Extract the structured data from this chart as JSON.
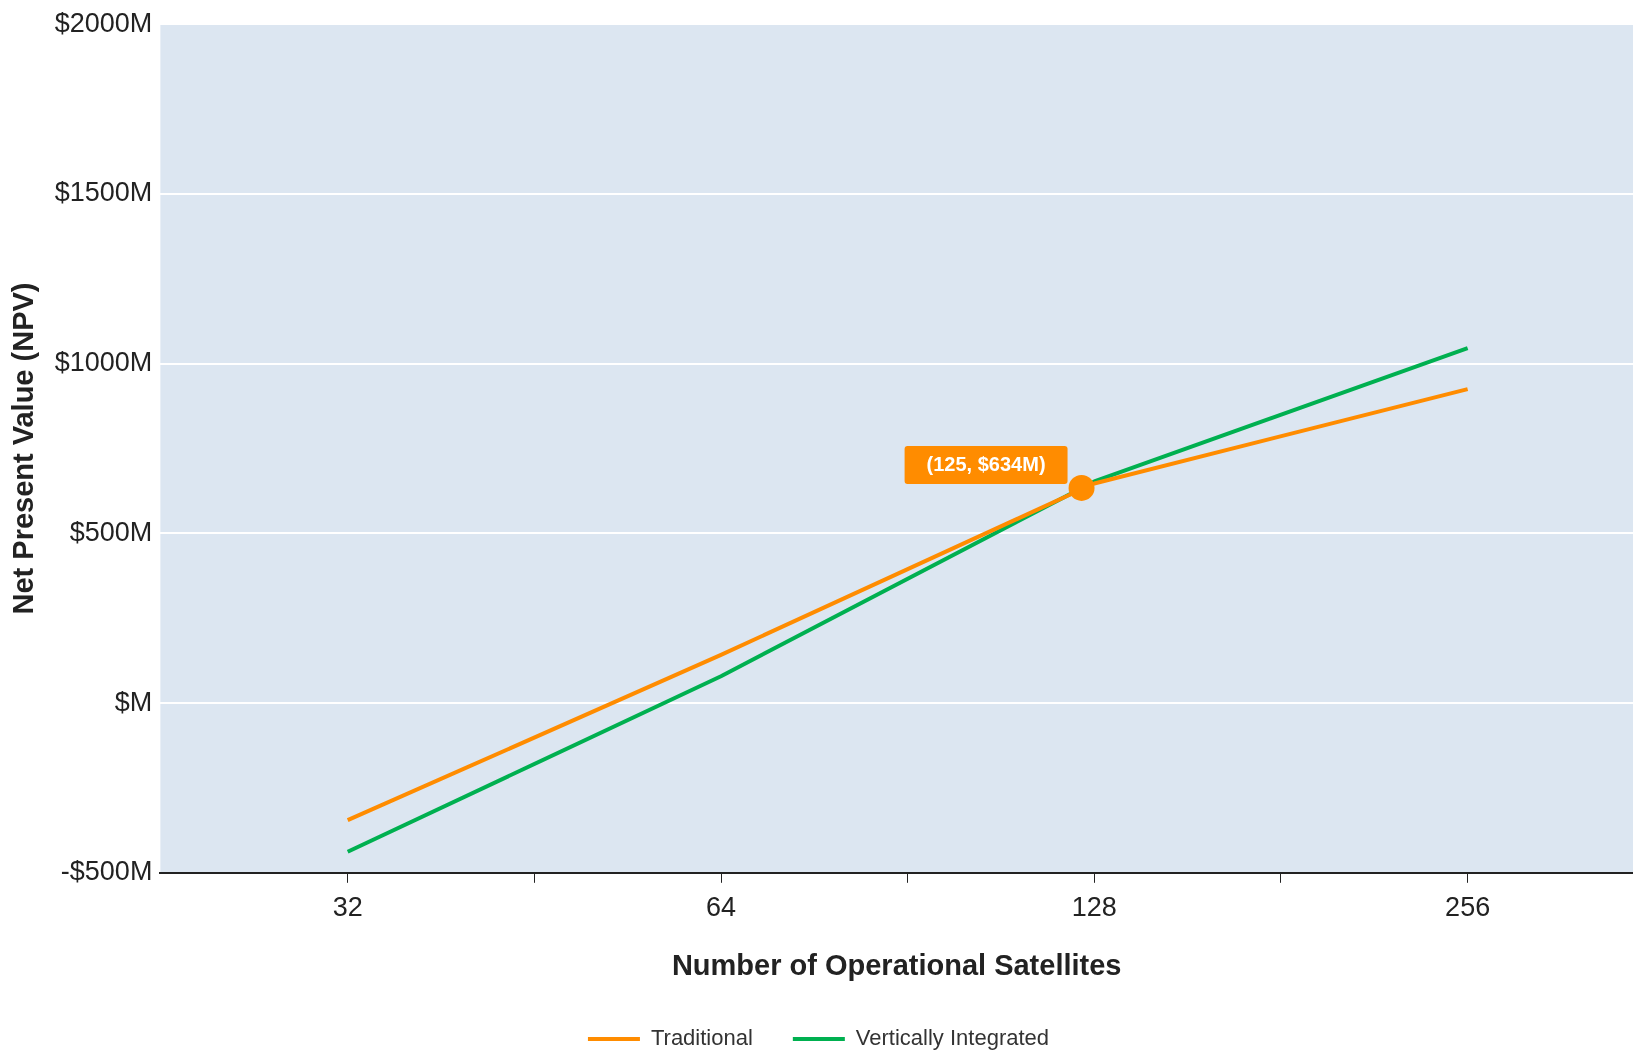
{
  "chart_data": {
    "type": "line",
    "xlabel": "Number of Operational Satellites",
    "ylabel": "Net Present Value (NPV)",
    "x": [
      32,
      64,
      128,
      256
    ],
    "series": [
      {
        "name": "Traditional",
        "color": "#ff8c00",
        "values": [
          -345,
          142,
          647,
          925
        ]
      },
      {
        "name": "Vertically Integrated",
        "color": "#00b050",
        "values": [
          -438,
          79,
          653,
          1046
        ]
      }
    ],
    "log": "x",
    "xlim": [
      22.6,
      348
    ],
    "xticks": [
      {
        "value": 32,
        "label": "32"
      },
      {
        "value": 45.25,
        "label": null
      },
      {
        "value": 64,
        "label": "64"
      },
      {
        "value": 90.5,
        "label": null
      },
      {
        "value": 128,
        "label": "128"
      },
      {
        "value": 181,
        "label": null
      },
      {
        "value": 256,
        "label": "256"
      }
    ],
    "ylim": [
      -500,
      2000
    ],
    "yticks": [
      {
        "value": -500,
        "label": "-$500M"
      },
      {
        "value": 0,
        "label": "$M"
      },
      {
        "value": 500,
        "label": "$500M"
      },
      {
        "value": 1000,
        "label": "$1000M"
      },
      {
        "value": 1500,
        "label": "$1500M"
      },
      {
        "value": 2000,
        "label": "$2000M"
      }
    ],
    "grid": "y",
    "legend": "bottom",
    "marker": "none",
    "line_style": "solid",
    "annotations": [
      {
        "text": "(125, $634M)",
        "x": 125,
        "y": 634
      }
    ]
  }
}
